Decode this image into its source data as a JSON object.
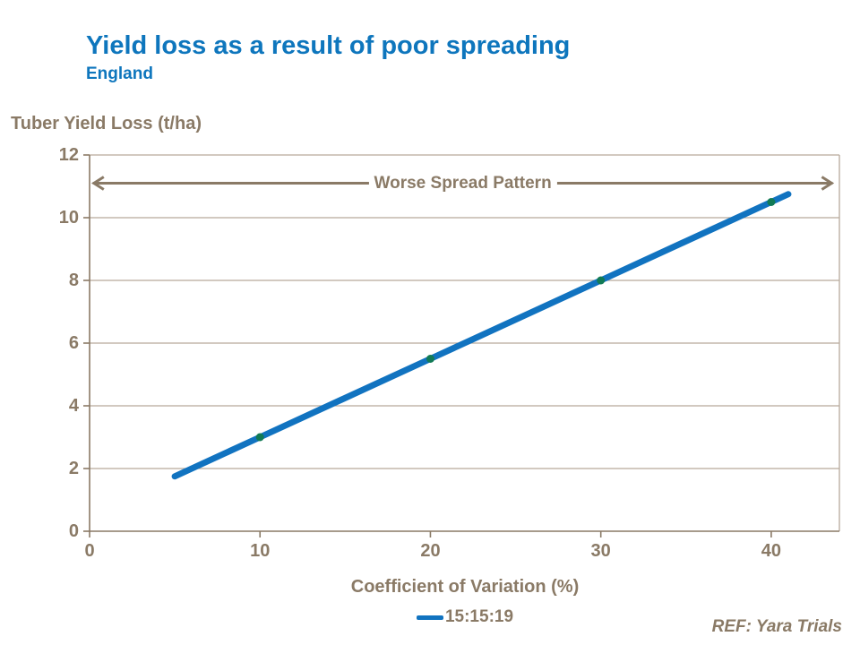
{
  "slide": {
    "title": "Yield loss as a result of poor spreading",
    "subtitle": "England",
    "ref_note": "REF: Yara Trials"
  },
  "colors": {
    "title-blue": "#0e76bd",
    "line-blue": "#1173c0",
    "marker-green": "#117a55",
    "text-brown": "#8a7a66",
    "grid-tan": "#b7a99b"
  },
  "chart_data": {
    "type": "line",
    "xlabel": "Coefficient of Variation (%)",
    "ylabel": "Tuber Yield Loss (t/ha)",
    "xlim": [
      0,
      44
    ],
    "ylim": [
      0,
      12
    ],
    "xticks": [
      0,
      10,
      20,
      30,
      40
    ],
    "yticks": [
      0,
      2,
      4,
      6,
      8,
      10,
      12
    ],
    "grid": "horizontal-y-only",
    "legend_position": "bottom-center",
    "annotation": {
      "text": "Worse Spread Pattern",
      "style": "double-headed-arrow",
      "y_value": 11.1,
      "x_from": 0.2,
      "x_to": 43.6
    },
    "series": [
      {
        "name": "15:15:19",
        "points": [
          [
            5,
            1.75
          ],
          [
            10,
            3
          ],
          [
            20,
            5.5
          ],
          [
            30,
            8
          ],
          [
            40,
            10.5
          ],
          [
            41,
            10.75
          ]
        ],
        "marker_points": [
          [
            10,
            3
          ],
          [
            20,
            5.5
          ],
          [
            30,
            8
          ],
          [
            40,
            10.5
          ]
        ]
      }
    ]
  }
}
